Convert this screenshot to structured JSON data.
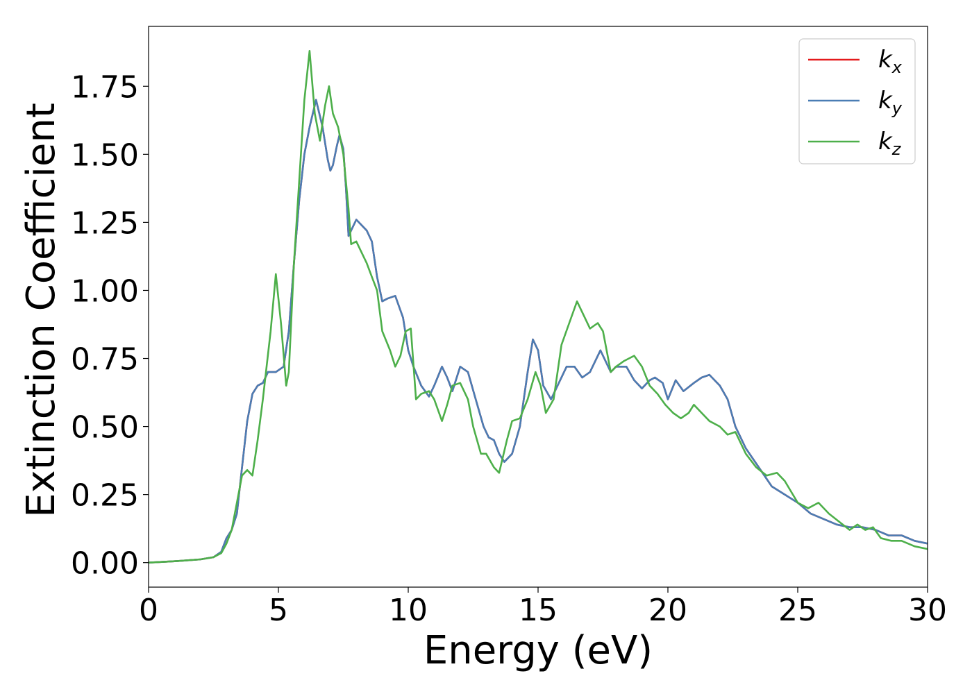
{
  "chart_data": {
    "type": "line",
    "title": "",
    "xlabel": "Energy (eV)",
    "ylabel": "Extinction Coefficient",
    "xlim": [
      0,
      30
    ],
    "ylim": [
      -0.09,
      1.97
    ],
    "xticks": [
      0,
      5,
      10,
      15,
      20,
      25,
      30
    ],
    "xtick_labels": [
      "0",
      "5",
      "10",
      "15",
      "20",
      "25",
      "30"
    ],
    "yticks": [
      0.0,
      0.25,
      0.5,
      0.75,
      1.0,
      1.25,
      1.5,
      1.75
    ],
    "ytick_labels": [
      "0.00",
      "0.25",
      "0.50",
      "0.75",
      "1.00",
      "1.25",
      "1.50",
      "1.75"
    ],
    "grid": false,
    "legend_position": "top-right",
    "series": [
      {
        "name": "k_x",
        "label_base": "k",
        "label_sub": "x",
        "color": "#e41a1c",
        "x": [
          0,
          1,
          2,
          2.5,
          2.8,
          3.0,
          3.2,
          3.4,
          3.6,
          3.8,
          4.0,
          4.2,
          4.4,
          4.6,
          4.9,
          5.2,
          5.4,
          5.6,
          5.8,
          6.0,
          6.2,
          6.45,
          6.7,
          6.9,
          7.0,
          7.1,
          7.25,
          7.35,
          7.5,
          7.6,
          7.7,
          7.8,
          8.0,
          8.2,
          8.4,
          8.6,
          8.8,
          9.0,
          9.2,
          9.5,
          9.8,
          10.0,
          10.2,
          10.5,
          10.8,
          11.0,
          11.3,
          11.5,
          11.7,
          12.0,
          12.3,
          12.6,
          12.9,
          13.1,
          13.3,
          13.5,
          13.7,
          14.0,
          14.3,
          14.6,
          14.8,
          15.0,
          15.2,
          15.5,
          15.8,
          16.1,
          16.4,
          16.7,
          17.0,
          17.4,
          17.8,
          18.0,
          18.4,
          18.7,
          19.0,
          19.3,
          19.5,
          19.8,
          20.0,
          20.3,
          20.6,
          21.0,
          21.3,
          21.6,
          22.0,
          22.3,
          22.6,
          23.0,
          23.5,
          24.0,
          24.5,
          25.0,
          25.5,
          26.0,
          26.5,
          27.0,
          27.5,
          28.0,
          28.5,
          29.0,
          29.5,
          30.0
        ],
        "y": [
          0.0,
          0.005,
          0.012,
          0.02,
          0.04,
          0.09,
          0.12,
          0.18,
          0.35,
          0.52,
          0.62,
          0.65,
          0.66,
          0.7,
          0.7,
          0.72,
          0.85,
          1.1,
          1.33,
          1.5,
          1.6,
          1.7,
          1.6,
          1.48,
          1.44,
          1.46,
          1.53,
          1.57,
          1.52,
          1.38,
          1.2,
          1.22,
          1.26,
          1.24,
          1.22,
          1.18,
          1.05,
          0.96,
          0.97,
          0.98,
          0.9,
          0.78,
          0.72,
          0.65,
          0.61,
          0.65,
          0.72,
          0.68,
          0.63,
          0.72,
          0.7,
          0.6,
          0.5,
          0.46,
          0.45,
          0.4,
          0.37,
          0.4,
          0.5,
          0.7,
          0.82,
          0.78,
          0.65,
          0.6,
          0.66,
          0.72,
          0.72,
          0.68,
          0.7,
          0.78,
          0.7,
          0.72,
          0.72,
          0.67,
          0.64,
          0.67,
          0.68,
          0.66,
          0.6,
          0.67,
          0.63,
          0.66,
          0.68,
          0.69,
          0.65,
          0.6,
          0.5,
          0.42,
          0.35,
          0.28,
          0.25,
          0.22,
          0.18,
          0.16,
          0.14,
          0.13,
          0.13,
          0.12,
          0.1,
          0.1,
          0.08,
          0.07
        ]
      },
      {
        "name": "k_y",
        "label_base": "k",
        "label_sub": "y",
        "color": "#4a7db4",
        "x": [
          0,
          1,
          2,
          2.5,
          2.8,
          3.0,
          3.2,
          3.4,
          3.6,
          3.8,
          4.0,
          4.2,
          4.4,
          4.6,
          4.9,
          5.2,
          5.4,
          5.6,
          5.8,
          6.0,
          6.2,
          6.45,
          6.7,
          6.9,
          7.0,
          7.1,
          7.25,
          7.35,
          7.5,
          7.6,
          7.7,
          7.8,
          8.0,
          8.2,
          8.4,
          8.6,
          8.8,
          9.0,
          9.2,
          9.5,
          9.8,
          10.0,
          10.2,
          10.5,
          10.8,
          11.0,
          11.3,
          11.5,
          11.7,
          12.0,
          12.3,
          12.6,
          12.9,
          13.1,
          13.3,
          13.5,
          13.7,
          14.0,
          14.3,
          14.6,
          14.8,
          15.0,
          15.2,
          15.5,
          15.8,
          16.1,
          16.4,
          16.7,
          17.0,
          17.4,
          17.8,
          18.0,
          18.4,
          18.7,
          19.0,
          19.3,
          19.5,
          19.8,
          20.0,
          20.3,
          20.6,
          21.0,
          21.3,
          21.6,
          22.0,
          22.3,
          22.6,
          23.0,
          23.5,
          24.0,
          24.5,
          25.0,
          25.5,
          26.0,
          26.5,
          27.0,
          27.5,
          28.0,
          28.5,
          29.0,
          29.5,
          30.0
        ],
        "y": [
          0.0,
          0.005,
          0.012,
          0.02,
          0.04,
          0.09,
          0.12,
          0.18,
          0.35,
          0.52,
          0.62,
          0.65,
          0.66,
          0.7,
          0.7,
          0.72,
          0.85,
          1.1,
          1.33,
          1.5,
          1.6,
          1.7,
          1.6,
          1.48,
          1.44,
          1.46,
          1.53,
          1.57,
          1.52,
          1.38,
          1.2,
          1.22,
          1.26,
          1.24,
          1.22,
          1.18,
          1.05,
          0.96,
          0.97,
          0.98,
          0.9,
          0.78,
          0.72,
          0.65,
          0.61,
          0.65,
          0.72,
          0.68,
          0.63,
          0.72,
          0.7,
          0.6,
          0.5,
          0.46,
          0.45,
          0.4,
          0.37,
          0.4,
          0.5,
          0.7,
          0.82,
          0.78,
          0.65,
          0.6,
          0.66,
          0.72,
          0.72,
          0.68,
          0.7,
          0.78,
          0.7,
          0.72,
          0.72,
          0.67,
          0.64,
          0.67,
          0.68,
          0.66,
          0.6,
          0.67,
          0.63,
          0.66,
          0.68,
          0.69,
          0.65,
          0.6,
          0.5,
          0.42,
          0.35,
          0.28,
          0.25,
          0.22,
          0.18,
          0.16,
          0.14,
          0.13,
          0.13,
          0.12,
          0.1,
          0.1,
          0.08,
          0.07
        ]
      },
      {
        "name": "k_z",
        "label_base": "k",
        "label_sub": "z",
        "color": "#4daf4a",
        "x": [
          0,
          1,
          2,
          2.5,
          2.8,
          3.0,
          3.2,
          3.4,
          3.6,
          3.8,
          4.0,
          4.2,
          4.4,
          4.7,
          4.9,
          5.1,
          5.3,
          5.4,
          5.6,
          5.8,
          6.0,
          6.2,
          6.4,
          6.6,
          6.8,
          6.95,
          7.1,
          7.3,
          7.5,
          7.7,
          7.8,
          8.0,
          8.2,
          8.4,
          8.6,
          8.8,
          9.0,
          9.3,
          9.5,
          9.7,
          9.9,
          10.1,
          10.3,
          10.5,
          10.8,
          11.0,
          11.3,
          11.5,
          11.7,
          12.0,
          12.3,
          12.5,
          12.8,
          13.0,
          13.3,
          13.5,
          13.8,
          14.0,
          14.3,
          14.6,
          14.9,
          15.1,
          15.3,
          15.6,
          15.9,
          16.2,
          16.5,
          16.8,
          17.0,
          17.3,
          17.5,
          17.8,
          18.0,
          18.3,
          18.7,
          19.0,
          19.3,
          19.6,
          19.9,
          20.2,
          20.5,
          20.8,
          21.0,
          21.3,
          21.6,
          22.0,
          22.3,
          22.6,
          23.0,
          23.4,
          23.8,
          24.2,
          24.5,
          25.0,
          25.4,
          25.8,
          26.2,
          26.6,
          27.0,
          27.3,
          27.6,
          27.9,
          28.2,
          28.6,
          29.0,
          29.5,
          30.0
        ],
        "y": [
          0.0,
          0.005,
          0.012,
          0.02,
          0.035,
          0.07,
          0.12,
          0.22,
          0.32,
          0.34,
          0.32,
          0.45,
          0.6,
          0.85,
          1.06,
          0.88,
          0.65,
          0.7,
          1.1,
          1.4,
          1.7,
          1.88,
          1.65,
          1.55,
          1.68,
          1.75,
          1.65,
          1.6,
          1.5,
          1.3,
          1.17,
          1.18,
          1.14,
          1.1,
          1.05,
          1.0,
          0.85,
          0.78,
          0.72,
          0.76,
          0.85,
          0.86,
          0.6,
          0.62,
          0.63,
          0.6,
          0.52,
          0.58,
          0.65,
          0.66,
          0.6,
          0.5,
          0.4,
          0.4,
          0.35,
          0.33,
          0.45,
          0.52,
          0.53,
          0.6,
          0.7,
          0.65,
          0.55,
          0.6,
          0.8,
          0.88,
          0.96,
          0.9,
          0.86,
          0.88,
          0.85,
          0.7,
          0.72,
          0.74,
          0.76,
          0.72,
          0.65,
          0.62,
          0.58,
          0.55,
          0.53,
          0.55,
          0.58,
          0.55,
          0.52,
          0.5,
          0.47,
          0.48,
          0.4,
          0.35,
          0.32,
          0.33,
          0.3,
          0.22,
          0.2,
          0.22,
          0.18,
          0.15,
          0.12,
          0.14,
          0.12,
          0.13,
          0.09,
          0.08,
          0.08,
          0.06,
          0.05
        ]
      }
    ]
  }
}
